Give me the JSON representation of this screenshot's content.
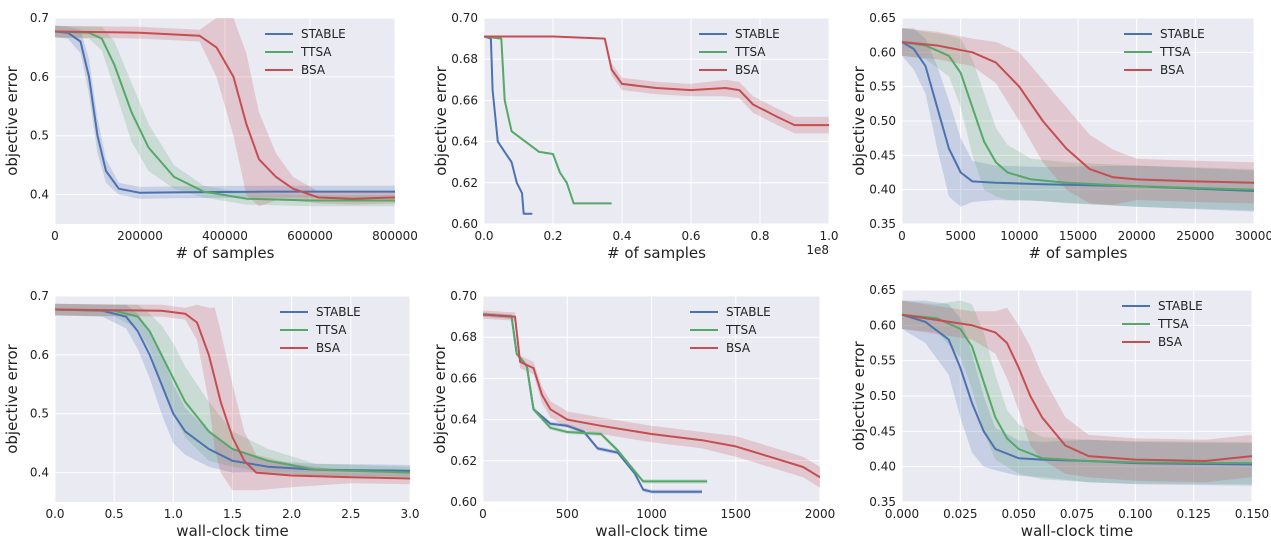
{
  "colors": {
    "STABLE": "#4c72b0",
    "TTSA": "#55a868",
    "BSA": "#c44e52",
    "panel_bg": "#eaeaf2",
    "grid": "#ffffff"
  },
  "chart_data": [
    {
      "type": "line",
      "xlabel": "# of samples",
      "ylabel": "objective error",
      "xlim": [
        0,
        800000
      ],
      "ylim": [
        0.35,
        0.7
      ],
      "xticks": [
        0,
        200000,
        400000,
        600000,
        800000
      ],
      "xtick_labels": [
        "0",
        "200000",
        "400000",
        "600000",
        "800000"
      ],
      "yticks": [
        0.4,
        0.5,
        0.6,
        0.7
      ],
      "ytick_labels": [
        "0.4",
        "0.5",
        "0.6",
        "0.7"
      ],
      "legend": "top-right",
      "grid": true,
      "series": [
        {
          "name": "STABLE",
          "x": [
            0,
            30000,
            60000,
            80000,
            100000,
            120000,
            150000,
            200000,
            300000,
            500000,
            800000
          ],
          "y": [
            0.677,
            0.675,
            0.66,
            0.6,
            0.5,
            0.44,
            0.41,
            0.403,
            0.404,
            0.405,
            0.405
          ],
          "band": [
            0.01,
            0.01,
            0.02,
            0.03,
            0.03,
            0.02,
            0.01,
            0.01,
            0.01,
            0.01,
            0.01
          ]
        },
        {
          "name": "TTSA",
          "x": [
            0,
            80000,
            110000,
            140000,
            180000,
            220000,
            280000,
            350000,
            450000,
            600000,
            800000
          ],
          "y": [
            0.677,
            0.675,
            0.665,
            0.62,
            0.54,
            0.48,
            0.43,
            0.405,
            0.393,
            0.39,
            0.39
          ],
          "band": [
            0.01,
            0.01,
            0.02,
            0.04,
            0.05,
            0.04,
            0.02,
            0.01,
            0.01,
            0.01,
            0.01
          ]
        },
        {
          "name": "BSA",
          "x": [
            0,
            200000,
            340000,
            380000,
            420000,
            450000,
            480000,
            520000,
            560000,
            620000,
            700000,
            800000
          ],
          "y": [
            0.677,
            0.675,
            0.67,
            0.65,
            0.6,
            0.52,
            0.46,
            0.43,
            0.41,
            0.395,
            0.393,
            0.395
          ],
          "band": [
            0.01,
            0.01,
            0.01,
            0.05,
            0.1,
            0.12,
            0.08,
            0.04,
            0.02,
            0.01,
            0.01,
            0.01
          ]
        }
      ]
    },
    {
      "type": "line",
      "xlabel": "# of samples",
      "ylabel": "objective error",
      "x_multiplier": "1e8",
      "xlim": [
        0,
        1.0
      ],
      "ylim": [
        0.6,
        0.7
      ],
      "xticks": [
        0.0,
        0.2,
        0.4,
        0.6,
        0.8,
        1.0
      ],
      "xtick_labels": [
        "0.0",
        "0.2",
        "0.4",
        "0.6",
        "0.8",
        "1.0"
      ],
      "yticks": [
        0.6,
        0.62,
        0.64,
        0.66,
        0.68,
        0.7
      ],
      "ytick_labels": [
        "0.60",
        "0.62",
        "0.64",
        "0.66",
        "0.68",
        "0.70"
      ],
      "legend": "top-right",
      "grid": true,
      "series": [
        {
          "name": "STABLE",
          "x": [
            0.0,
            0.02,
            0.025,
            0.04,
            0.06,
            0.08,
            0.095,
            0.11,
            0.115,
            0.14
          ],
          "y": [
            0.691,
            0.69,
            0.665,
            0.64,
            0.635,
            0.63,
            0.62,
            0.615,
            0.605,
            0.605
          ],
          "band": [
            0.0,
            0.0,
            0.0,
            0.0,
            0.0,
            0.0,
            0.0,
            0.0,
            0.0,
            0.0
          ]
        },
        {
          "name": "TTSA",
          "x": [
            0.0,
            0.05,
            0.06,
            0.08,
            0.12,
            0.16,
            0.2,
            0.22,
            0.24,
            0.26,
            0.3,
            0.37
          ],
          "y": [
            0.691,
            0.69,
            0.66,
            0.645,
            0.64,
            0.635,
            0.634,
            0.625,
            0.62,
            0.61,
            0.61,
            0.61
          ],
          "band": [
            0.0,
            0.0,
            0.0,
            0.0,
            0.0,
            0.0,
            0.0,
            0.0,
            0.0,
            0.0,
            0.0,
            0.0
          ]
        },
        {
          "name": "BSA",
          "x": [
            0.0,
            0.2,
            0.35,
            0.37,
            0.4,
            0.5,
            0.6,
            0.7,
            0.74,
            0.78,
            0.85,
            0.9,
            1.0
          ],
          "y": [
            0.691,
            0.691,
            0.69,
            0.675,
            0.668,
            0.666,
            0.665,
            0.666,
            0.665,
            0.658,
            0.652,
            0.648,
            0.648
          ],
          "band": [
            0.0,
            0.0,
            0.0,
            0.003,
            0.003,
            0.003,
            0.003,
            0.004,
            0.004,
            0.004,
            0.004,
            0.004,
            0.004
          ]
        }
      ]
    },
    {
      "type": "line",
      "xlabel": "# of samples",
      "ylabel": "objective error",
      "xlim": [
        0,
        30000
      ],
      "ylim": [
        0.35,
        0.65
      ],
      "xticks": [
        0,
        5000,
        10000,
        15000,
        20000,
        25000,
        30000
      ],
      "xtick_labels": [
        "0",
        "5000",
        "10000",
        "15000",
        "20000",
        "25000",
        "30000"
      ],
      "yticks": [
        0.35,
        0.4,
        0.45,
        0.5,
        0.55,
        0.6,
        0.65
      ],
      "ytick_labels": [
        "0.35",
        "0.40",
        "0.45",
        "0.50",
        "0.55",
        "0.60",
        "0.65"
      ],
      "legend": "top-right",
      "grid": true,
      "series": [
        {
          "name": "STABLE",
          "x": [
            0,
            1000,
            2000,
            3000,
            4000,
            5000,
            6000,
            8000,
            12000,
            20000,
            30000
          ],
          "y": [
            0.615,
            0.605,
            0.58,
            0.52,
            0.46,
            0.425,
            0.412,
            0.41,
            0.408,
            0.405,
            0.398
          ],
          "band": [
            0.02,
            0.03,
            0.04,
            0.06,
            0.07,
            0.05,
            0.03,
            0.025,
            0.025,
            0.03,
            0.03
          ]
        },
        {
          "name": "TTSA",
          "x": [
            0,
            2000,
            4000,
            5000,
            6000,
            7000,
            8000,
            9000,
            11000,
            14000,
            20000,
            30000
          ],
          "y": [
            0.615,
            0.61,
            0.595,
            0.57,
            0.52,
            0.47,
            0.44,
            0.425,
            0.415,
            0.41,
            0.405,
            0.4
          ],
          "band": [
            0.02,
            0.02,
            0.03,
            0.05,
            0.07,
            0.07,
            0.05,
            0.04,
            0.03,
            0.03,
            0.03,
            0.03
          ]
        },
        {
          "name": "BSA",
          "x": [
            0,
            3000,
            6000,
            8000,
            10000,
            12000,
            14000,
            16000,
            18000,
            20000,
            25000,
            30000
          ],
          "y": [
            0.615,
            0.61,
            0.6,
            0.585,
            0.55,
            0.5,
            0.46,
            0.43,
            0.418,
            0.415,
            0.412,
            0.41
          ],
          "band": [
            0.02,
            0.02,
            0.02,
            0.03,
            0.05,
            0.06,
            0.06,
            0.05,
            0.04,
            0.03,
            0.03,
            0.03
          ]
        }
      ]
    },
    {
      "type": "line",
      "xlabel": "wall-clock time",
      "ylabel": "objective error",
      "xlim": [
        0,
        3.0
      ],
      "ylim": [
        0.35,
        0.7
      ],
      "xticks": [
        0.0,
        0.5,
        1.0,
        1.5,
        2.0,
        2.5,
        3.0
      ],
      "xtick_labels": [
        "0.0",
        "0.5",
        "1.0",
        "1.5",
        "2.0",
        "2.5",
        "3.0"
      ],
      "yticks": [
        0.4,
        0.5,
        0.6,
        0.7
      ],
      "ytick_labels": [
        "0.4",
        "0.5",
        "0.6",
        "0.7"
      ],
      "legend": "top-right",
      "grid": true,
      "series": [
        {
          "name": "STABLE",
          "x": [
            0,
            0.4,
            0.6,
            0.7,
            0.8,
            0.9,
            1.0,
            1.1,
            1.3,
            1.5,
            1.8,
            2.2,
            3.0
          ],
          "y": [
            0.677,
            0.675,
            0.665,
            0.64,
            0.6,
            0.55,
            0.5,
            0.47,
            0.44,
            0.42,
            0.41,
            0.405,
            0.403
          ],
          "band": [
            0.01,
            0.01,
            0.02,
            0.03,
            0.04,
            0.05,
            0.05,
            0.04,
            0.03,
            0.02,
            0.01,
            0.01,
            0.01
          ]
        },
        {
          "name": "TTSA",
          "x": [
            0,
            0.5,
            0.7,
            0.8,
            0.9,
            1.0,
            1.1,
            1.3,
            1.5,
            1.8,
            2.2,
            3.0
          ],
          "y": [
            0.677,
            0.675,
            0.665,
            0.64,
            0.6,
            0.56,
            0.52,
            0.47,
            0.44,
            0.42,
            0.405,
            0.4
          ],
          "band": [
            0.01,
            0.01,
            0.02,
            0.03,
            0.05,
            0.06,
            0.06,
            0.05,
            0.03,
            0.02,
            0.01,
            0.01
          ]
        },
        {
          "name": "BSA",
          "x": [
            0,
            0.9,
            1.1,
            1.2,
            1.3,
            1.35,
            1.4,
            1.5,
            1.6,
            1.7,
            2.0,
            2.5,
            3.0
          ],
          "y": [
            0.677,
            0.675,
            0.67,
            0.655,
            0.6,
            0.56,
            0.52,
            0.46,
            0.42,
            0.4,
            0.395,
            0.392,
            0.39
          ],
          "band": [
            0.01,
            0.01,
            0.01,
            0.03,
            0.08,
            0.12,
            0.12,
            0.09,
            0.05,
            0.03,
            0.02,
            0.01,
            0.01
          ]
        }
      ]
    },
    {
      "type": "line",
      "xlabel": "wall-clock time",
      "ylabel": "objective error",
      "xlim": [
        0,
        2000
      ],
      "ylim": [
        0.6,
        0.7
      ],
      "xticks": [
        0,
        500,
        1000,
        1500,
        2000
      ],
      "xtick_labels": [
        "0",
        "500",
        "1000",
        "1500",
        "2000"
      ],
      "yticks": [
        0.6,
        0.62,
        0.64,
        0.66,
        0.68,
        0.7
      ],
      "ytick_labels": [
        "0.60",
        "0.62",
        "0.64",
        "0.66",
        "0.68",
        "0.70"
      ],
      "legend": "top-right",
      "grid": true,
      "series": [
        {
          "name": "STABLE",
          "x": [
            0,
            170,
            200,
            260,
            300,
            400,
            500,
            600,
            680,
            800,
            900,
            950,
            1000,
            1300
          ],
          "y": [
            0.691,
            0.69,
            0.672,
            0.666,
            0.645,
            0.638,
            0.637,
            0.634,
            0.626,
            0.624,
            0.614,
            0.606,
            0.605,
            0.605
          ],
          "band": [
            0.001,
            0.001,
            0.001,
            0.001,
            0.001,
            0.001,
            0.001,
            0.001,
            0.001,
            0.001,
            0.001,
            0.001,
            0.001,
            0.001
          ]
        },
        {
          "name": "TTSA",
          "x": [
            0,
            170,
            200,
            260,
            300,
            400,
            500,
            700,
            800,
            900,
            950,
            1000,
            1330
          ],
          "y": [
            0.691,
            0.69,
            0.672,
            0.666,
            0.645,
            0.636,
            0.634,
            0.633,
            0.625,
            0.615,
            0.61,
            0.61,
            0.61
          ],
          "band": [
            0.001,
            0.001,
            0.001,
            0.001,
            0.001,
            0.001,
            0.001,
            0.001,
            0.001,
            0.001,
            0.001,
            0.001,
            0.001
          ]
        },
        {
          "name": "BSA",
          "x": [
            0,
            190,
            220,
            300,
            350,
            400,
            500,
            700,
            1000,
            1300,
            1500,
            1700,
            1900,
            2000
          ],
          "y": [
            0.691,
            0.69,
            0.668,
            0.665,
            0.652,
            0.645,
            0.64,
            0.637,
            0.633,
            0.63,
            0.627,
            0.622,
            0.617,
            0.612
          ],
          "band": [
            0.002,
            0.002,
            0.003,
            0.003,
            0.004,
            0.004,
            0.004,
            0.004,
            0.004,
            0.004,
            0.005,
            0.005,
            0.005,
            0.005
          ]
        }
      ]
    },
    {
      "type": "line",
      "xlabel": "wall-clock time",
      "ylabel": "objective error",
      "xlim": [
        0,
        0.15
      ],
      "ylim": [
        0.35,
        0.65
      ],
      "xticks": [
        0.0,
        0.025,
        0.05,
        0.075,
        0.1,
        0.125,
        0.15
      ],
      "xtick_labels": [
        "0.000",
        "0.025",
        "0.050",
        "0.075",
        "0.100",
        "0.125",
        "0.150"
      ],
      "yticks": [
        0.35,
        0.4,
        0.45,
        0.5,
        0.55,
        0.6,
        0.65
      ],
      "ytick_labels": [
        "0.35",
        "0.40",
        "0.45",
        "0.50",
        "0.55",
        "0.60",
        "0.65"
      ],
      "legend": "top-right",
      "grid": true,
      "series": [
        {
          "name": "STABLE",
          "x": [
            0,
            0.01,
            0.02,
            0.025,
            0.03,
            0.035,
            0.04,
            0.05,
            0.06,
            0.08,
            0.1,
            0.15
          ],
          "y": [
            0.615,
            0.605,
            0.58,
            0.54,
            0.49,
            0.45,
            0.425,
            0.412,
            0.41,
            0.408,
            0.405,
            0.403
          ],
          "band": [
            0.02,
            0.03,
            0.05,
            0.07,
            0.07,
            0.05,
            0.03,
            0.025,
            0.025,
            0.03,
            0.03,
            0.03
          ]
        },
        {
          "name": "TTSA",
          "x": [
            0,
            0.015,
            0.025,
            0.03,
            0.035,
            0.04,
            0.045,
            0.05,
            0.06,
            0.08,
            0.1,
            0.15
          ],
          "y": [
            0.615,
            0.61,
            0.595,
            0.57,
            0.52,
            0.47,
            0.44,
            0.425,
            0.412,
            0.408,
            0.406,
            0.405
          ],
          "band": [
            0.02,
            0.02,
            0.04,
            0.06,
            0.07,
            0.06,
            0.04,
            0.035,
            0.03,
            0.03,
            0.03,
            0.03
          ]
        },
        {
          "name": "BSA",
          "x": [
            0,
            0.02,
            0.03,
            0.04,
            0.045,
            0.05,
            0.055,
            0.06,
            0.07,
            0.08,
            0.1,
            0.13,
            0.15
          ],
          "y": [
            0.615,
            0.605,
            0.6,
            0.59,
            0.575,
            0.54,
            0.5,
            0.47,
            0.43,
            0.415,
            0.41,
            0.408,
            0.415
          ],
          "band": [
            0.02,
            0.02,
            0.02,
            0.03,
            0.05,
            0.06,
            0.07,
            0.06,
            0.04,
            0.03,
            0.03,
            0.03,
            0.03
          ]
        }
      ]
    }
  ]
}
